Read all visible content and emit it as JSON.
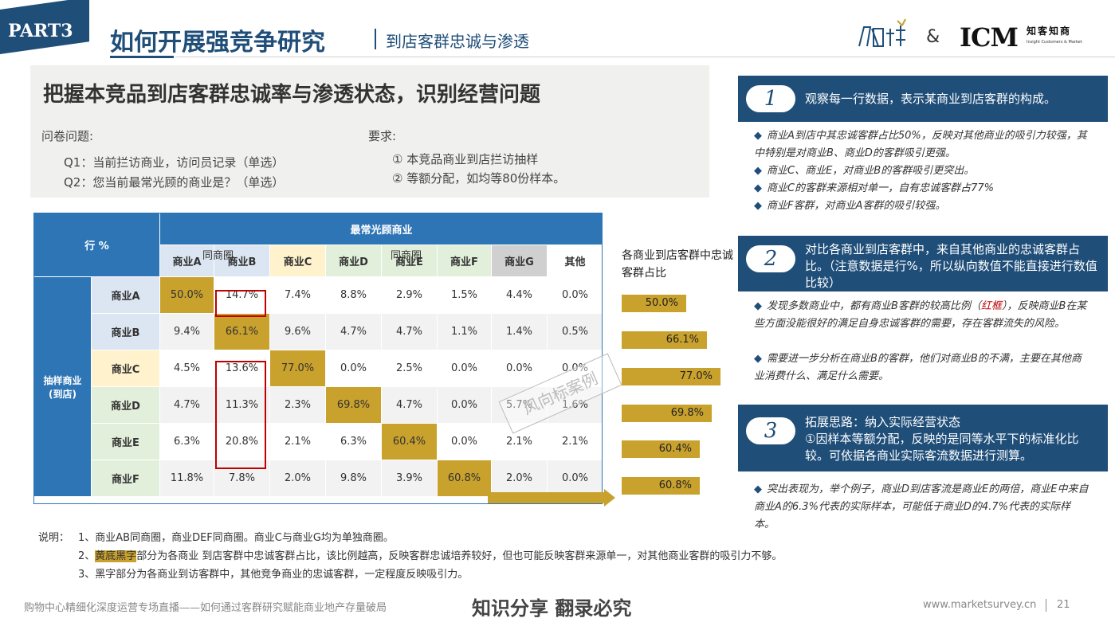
{
  "header": {
    "part": "PART3",
    "title": "如何开展强竞争研究",
    "subtitle": "到店客群忠诚与渗透",
    "amp": "&",
    "logo_icm": "ICM",
    "logo_zkzs": "知客知商",
    "logo_zkzs_en": "Insight Customers & Market"
  },
  "panel": {
    "title": "把握本竞品到店客群忠诚率与渗透状态，识别经营问题",
    "questionnaire_label": "问卷问题:",
    "q1": "Q1：当前拦访商业，访问员记录（单选）",
    "q2": "Q2：您当前最常光顾的商业是？（单选）",
    "requirements_label": "要求:",
    "r1": "① 本竞品商业到店拦访抽样",
    "r2": "② 等额分配，如均等80份样本。"
  },
  "table": {
    "corner": "行 %",
    "col_group": "最常光顾商业",
    "row_group": "抽样商业\n(到店)",
    "same_circle_1": "同商圈",
    "same_circle_2": "同商圈",
    "columns": [
      "商业A",
      "商业B",
      "商业C",
      "商业D",
      "商业E",
      "商业F",
      "商业G",
      "其他"
    ],
    "rows": [
      {
        "label": "商业A",
        "values": [
          "50.0%",
          "14.7%",
          "7.4%",
          "8.8%",
          "2.9%",
          "1.5%",
          "4.4%",
          "0.0%"
        ]
      },
      {
        "label": "商业B",
        "values": [
          "9.4%",
          "66.1%",
          "9.6%",
          "4.7%",
          "4.7%",
          "1.1%",
          "1.4%",
          "0.5%"
        ]
      },
      {
        "label": "商业C",
        "values": [
          "4.5%",
          "13.6%",
          "77.0%",
          "0.0%",
          "2.5%",
          "0.0%",
          "0.0%",
          "0.0%"
        ]
      },
      {
        "label": "商业D",
        "values": [
          "4.7%",
          "11.3%",
          "2.3%",
          "69.8%",
          "4.7%",
          "0.0%",
          "5.7%",
          "1.6%"
        ]
      },
      {
        "label": "商业E",
        "values": [
          "6.3%",
          "20.8%",
          "2.1%",
          "6.3%",
          "60.4%",
          "0.0%",
          "2.1%",
          "2.1%"
        ]
      },
      {
        "label": "商业F",
        "values": [
          "11.8%",
          "7.8%",
          "2.0%",
          "9.8%",
          "3.9%",
          "60.8%",
          "2.0%",
          "0.0%"
        ]
      }
    ],
    "watermark": "风向标案例"
  },
  "loyalty": {
    "title": "各商业到店客群中忠诚客群占比",
    "values": [
      50.0,
      66.1,
      77.0,
      69.8,
      60.4,
      60.8
    ],
    "labels": [
      "50.0%",
      "66.1%",
      "77.0%",
      "69.8%",
      "60.4%",
      "60.8%"
    ]
  },
  "notes": {
    "prefix": "说明：",
    "n1": "1、商业AB同商圈，商业DEF同商圈。商业C与商业G均为单独商圈。",
    "n2_num": "2、",
    "n2_hl": "黄底黑字",
    "n2_rest": "部分为各商业 到店客群中忠诚客群占比，该比例越高，反映客群忠诚培养较好，但也可能反映客群来源单一，对其他商业客群的吸引力不够。",
    "n3": "3、黑字部分为各商业到访客群中，其他竞争商业的忠诚客群，一定程度反映吸引力。"
  },
  "right": {
    "box1": {
      "num": "1",
      "text": "观察每一行数据，表示某商业到店客群的构成。"
    },
    "box1_bullets": [
      "商业A到店中其忠诚客群占比50%，反映对其他商业的吸引力较强，其中特别是对商业B、商业D的客群吸引更强。",
      "商业C、商业E，对商业B的客群吸引更突出。",
      "商业C的客群来源相对单一，自有忠诚客群占77%",
      "商业F客群，对商业A客群的吸引较强。"
    ],
    "box2": {
      "num": "2",
      "text": "对比各商业到店客群中，来自其他商业的忠诚客群占比。（注意数据是行%，所以纵向数值不能直接进行数值比较）"
    },
    "box2_bullets": [
      {
        "pre": "发现多数商业中，都有商业B客群的较高比例（",
        "red": "红框",
        "post": "），反映商业B在某些方面没能很好的满足自身忠诚客群的需要，存在客群流失的风险。"
      },
      {
        "pre": "需要进一步分析在商业B的客群，他们对商业B的不满，主要在其他商业消费什么、满足什么需要。",
        "red": "",
        "post": ""
      }
    ],
    "box3": {
      "num": "3",
      "line1": "拓展思路：纳入实际经营状态",
      "line2": "①因样本等额分配，反映的是同等水平下的标准化比较。可依据各商业实际客流数据进行测算。"
    },
    "box3_bullets": [
      "突出表现为，举个例子，商业D到店客流是商业E的两倍，商业E中来自商业A的6.3%代表的实际样本，可能低于商业D的4.7%代表的实际样本。"
    ]
  },
  "footer": {
    "left": "购物中心精细化深度运营专场直播——如何通过客群研究赋能商业地产存量破局",
    "center": "知识分享 翻录必究",
    "url": "www.marketsurvey.cn",
    "page": "21"
  }
}
